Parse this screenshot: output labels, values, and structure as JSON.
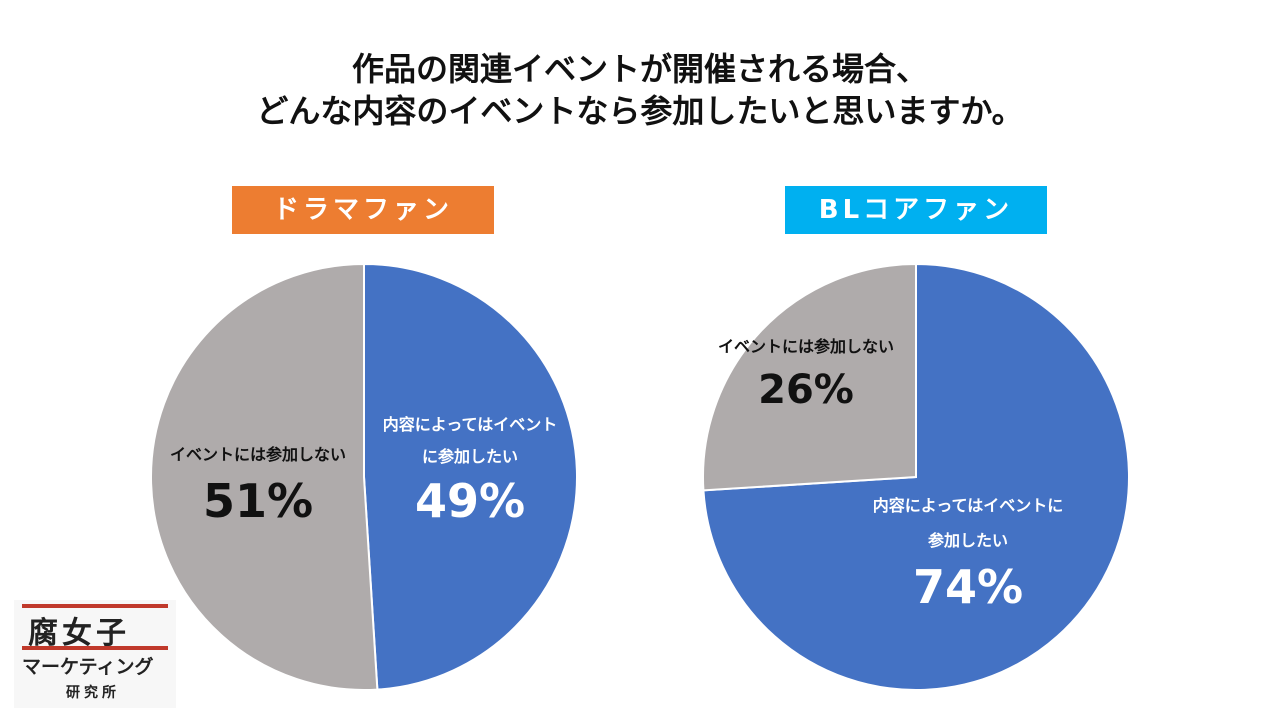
{
  "title_line1": "作品の関連イベントが開催される場合、",
  "title_line2": "どんな内容のイベントなら参加したいと思いますか。",
  "colors": {
    "participate": "#4472c4",
    "not_participate": "#afabab",
    "drama_label": "#ed7d31",
    "bl_label": "#00b0f0"
  },
  "chart_data": [
    {
      "type": "pie",
      "title": "ドラマファン",
      "slices": [
        {
          "label_line1": "内容によってはイベント",
          "label_line2": "に参加したい",
          "value": 49,
          "pct_text": "49%"
        },
        {
          "label_line1": "イベントには参加しない",
          "label_line2": "",
          "value": 51,
          "pct_text": "51%"
        }
      ]
    },
    {
      "type": "pie",
      "title": "BLコアファン",
      "slices": [
        {
          "label_line1": "内容によってはイベントに",
          "label_line2": "参加したい",
          "value": 74,
          "pct_text": "74%"
        },
        {
          "label_line1": "イベントには参加しない",
          "label_line2": "",
          "value": 26,
          "pct_text": "26%"
        }
      ]
    }
  ],
  "logo": {
    "line1": "腐女子",
    "line2": "マーケティング",
    "line3": "研究所"
  }
}
